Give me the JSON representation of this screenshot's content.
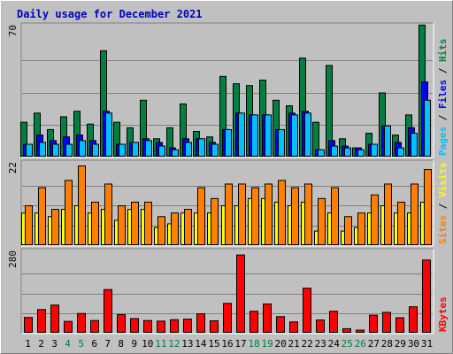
{
  "chart_data": {
    "type": "bar",
    "title": "Daily usage for December 2021",
    "days": [
      "1",
      "2",
      "3",
      "4",
      "5",
      "6",
      "7",
      "8",
      "9",
      "10",
      "11",
      "12",
      "13",
      "14",
      "15",
      "16",
      "17",
      "18",
      "19",
      "20",
      "21",
      "22",
      "23",
      "24",
      "25",
      "26",
      "27",
      "28",
      "29",
      "30",
      "31"
    ],
    "weekend_days": [
      "4",
      "5",
      "11",
      "12",
      "18",
      "19",
      "25",
      "26"
    ],
    "panels": [
      {
        "id": "hits",
        "scale_max": 70,
        "scale_label": "70",
        "right_labels": [
          {
            "text": "Pages",
            "color": "#00c0ff"
          },
          {
            "text": " / ",
            "color": "#000000"
          },
          {
            "text": "Files",
            "color": "#0000ff"
          },
          {
            "text": " / ",
            "color": "#000000"
          },
          {
            "text": "Hits",
            "color": "#008040"
          }
        ],
        "series": [
          {
            "name": "Hits",
            "color": "#008040",
            "values": [
              19,
              24,
              15,
              22,
              25,
              18,
              58,
              19,
              16,
              31,
              10,
              16,
              29,
              14,
              11,
              44,
              40,
              39,
              42,
              31,
              28,
              54,
              19,
              50,
              10,
              5,
              13,
              35,
              12,
              23,
              72
            ]
          },
          {
            "name": "Files",
            "color": "#0000ff",
            "values": [
              7,
              12,
              9,
              11,
              12,
              9,
              25,
              7,
              8,
              10,
              8,
              5,
              10,
              10,
              8,
              15,
              24,
              23,
              23,
              15,
              24,
              25,
              4,
              9,
              6,
              5,
              7,
              17,
              8,
              16,
              41
            ]
          },
          {
            "name": "Pages",
            "color": "#00c0ff",
            "values": [
              7,
              8,
              7,
              7,
              9,
              7,
              24,
              7,
              8,
              9,
              6,
              4,
              8,
              10,
              7,
              15,
              24,
              23,
              23,
              15,
              23,
              24,
              4,
              6,
              5,
              4,
              7,
              17,
              5,
              13,
              31
            ]
          }
        ]
      },
      {
        "id": "visits",
        "scale_max": 22,
        "scale_label": "22",
        "right_labels": [
          {
            "text": "Sites",
            "color": "#ff8000"
          },
          {
            "text": " / ",
            "color": "#000000"
          },
          {
            "text": "Visits",
            "color": "#ffff00"
          }
        ],
        "series": [
          {
            "name": "Visits",
            "color": "#ffff00",
            "values": [
              9,
              9,
              8,
              10,
              11,
              9,
              10,
              7,
              10,
              10,
              5,
              6,
              9,
              9,
              9,
              11,
              11,
              13,
              13,
              12,
              11,
              12,
              4,
              9,
              4,
              5,
              9,
              11,
              9,
              9,
              12
            ]
          },
          {
            "name": "Sites",
            "color": "#ff8000",
            "values": [
              11,
              16,
              10,
              18,
              22,
              12,
              17,
              11,
              12,
              12,
              8,
              9,
              10,
              16,
              13,
              17,
              17,
              16,
              17,
              18,
              16,
              17,
              13,
              16,
              8,
              9,
              14,
              17,
              12,
              17,
              21
            ]
          }
        ]
      },
      {
        "id": "kbytes",
        "scale_max": 280,
        "scale_label": "280",
        "right_labels": [
          {
            "text": "KBytes",
            "color": "#ff0000"
          }
        ],
        "series": [
          {
            "name": "KBytes",
            "color": "#ff0000",
            "values": [
              56,
              84,
              100,
              42,
              70,
              45,
              155,
              66,
              52,
              45,
              43,
              48,
              50,
              69,
              44,
              106,
              278,
              78,
              104,
              59,
              40,
              160,
              47,
              78,
              16,
              11,
              64,
              74,
              55,
              94,
              260
            ]
          }
        ]
      }
    ]
  }
}
